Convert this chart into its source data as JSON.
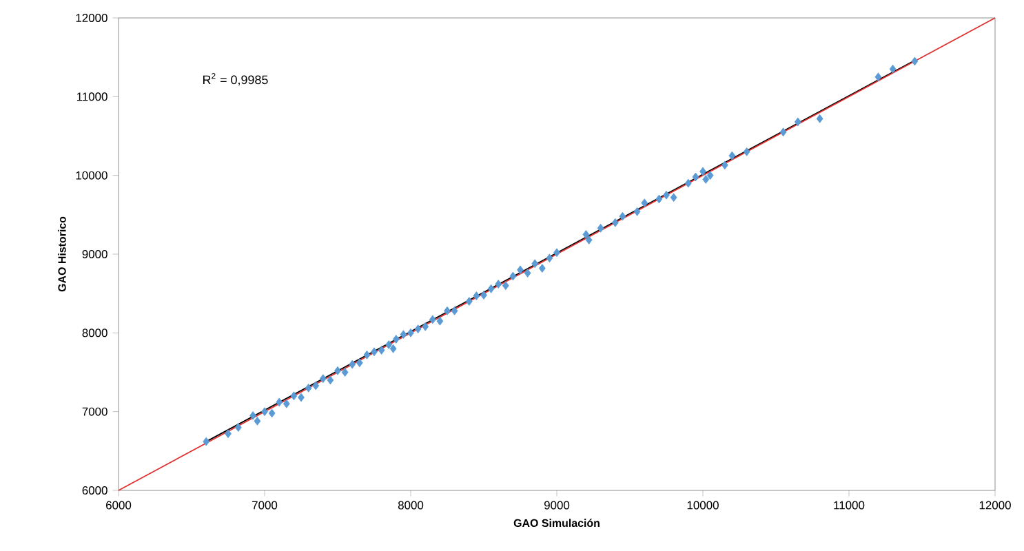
{
  "chart_data": {
    "type": "scatter",
    "xlabel": "GAO Simulación",
    "ylabel": "GAO Historico",
    "annotations": [
      "R$^{2}$ = 0,9985"
    ],
    "xlim": [
      6000,
      12000
    ],
    "ylim": [
      6000,
      12000
    ],
    "xticks": [
      6000,
      7000,
      8000,
      9000,
      10000,
      11000,
      12000
    ],
    "yticks": [
      6000,
      7000,
      8000,
      9000,
      10000,
      11000,
      12000
    ],
    "grid": false,
    "series": [
      {
        "marker": "diamond",
        "color": "#5b9bd5",
        "x": [
          6600,
          6750,
          6820,
          6920,
          6950,
          7000,
          7050,
          7100,
          7150,
          7200,
          7250,
          7300,
          7350,
          7400,
          7450,
          7500,
          7550,
          7600,
          7650,
          7700,
          7750,
          7800,
          7850,
          7880,
          7900,
          7950,
          8000,
          8050,
          8100,
          8150,
          8200,
          8250,
          8300,
          8400,
          8450,
          8500,
          8550,
          8600,
          8650,
          8700,
          8750,
          8800,
          8850,
          8900,
          8950,
          9000,
          9200,
          9220,
          9300,
          9400,
          9450,
          9550,
          9600,
          9700,
          9750,
          9800,
          9900,
          9950,
          10000,
          10020,
          10050,
          10150,
          10200,
          10300,
          10550,
          10650,
          10800,
          11200,
          11300,
          11450
        ],
        "values": [
          6620,
          6720,
          6800,
          6950,
          6880,
          7000,
          6980,
          7120,
          7100,
          7200,
          7180,
          7300,
          7330,
          7420,
          7400,
          7520,
          7500,
          7600,
          7620,
          7720,
          7760,
          7780,
          7850,
          7800,
          7920,
          7980,
          8000,
          8050,
          8080,
          8170,
          8150,
          8280,
          8280,
          8400,
          8470,
          8480,
          8560,
          8620,
          8600,
          8720,
          8800,
          8760,
          8880,
          8820,
          8950,
          9020,
          9250,
          9180,
          9330,
          9400,
          9480,
          9540,
          9650,
          9700,
          9750,
          9720,
          9900,
          9980,
          10050,
          9950,
          10000,
          10130,
          10250,
          10300,
          10550,
          10680,
          10720,
          11250,
          11350,
          11450
        ]
      },
      {
        "type": "line",
        "color": "#000000",
        "x": [
          6600,
          11450
        ],
        "values": [
          6620,
          11460
        ]
      },
      {
        "type": "line",
        "color": "#e03030",
        "x": [
          6000,
          12000
        ],
        "values": [
          6000,
          12000
        ]
      }
    ]
  }
}
